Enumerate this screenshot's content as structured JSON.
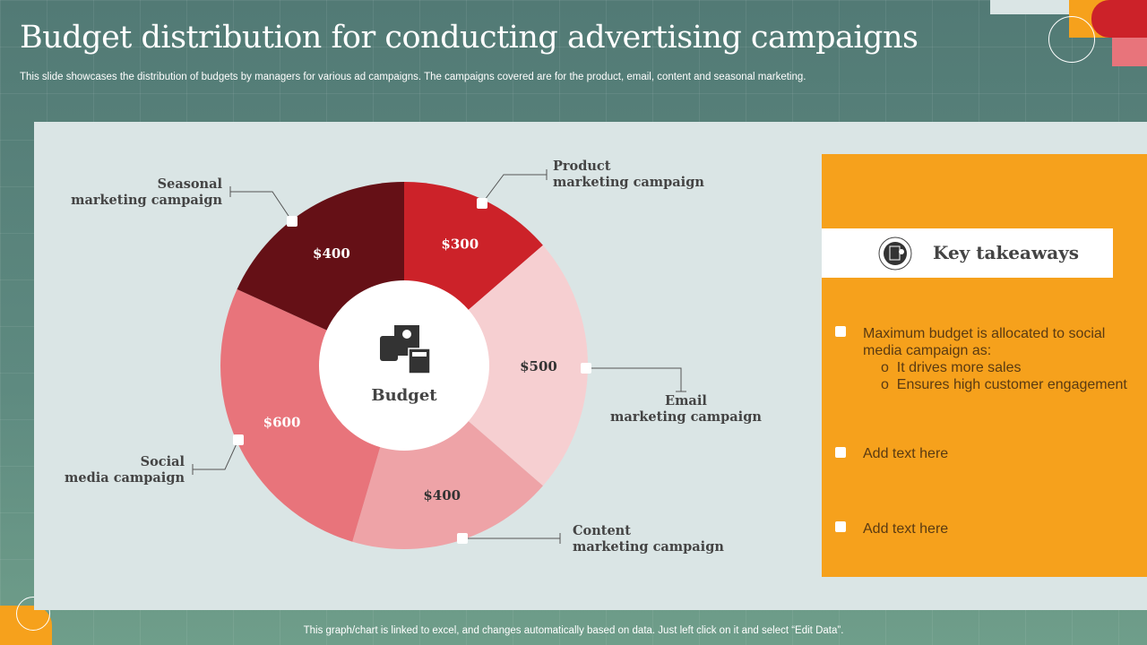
{
  "title": "Budget distribution for conducting advertising campaigns",
  "subtitle": "This slide showcases the distribution of budgets by managers for various ad campaigns. The campaigns covered are for the product, email, content and seasonal marketing.",
  "footer": "This graph/chart is linked to excel,  and changes automatically based on data. Just left click on it and select “Edit Data”.",
  "chart_data": {
    "type": "pie",
    "donut": true,
    "center_label": "Budget",
    "categories": [
      "Product marketing campaign",
      "Email marketing campaign",
      "Content marketing campaign",
      "Social media campaign",
      "Seasonal marketing campaign"
    ],
    "values": [
      300,
      500,
      400,
      600,
      400
    ],
    "data_labels": [
      "$300",
      "$500",
      "$400",
      "$600",
      "$400"
    ],
    "colors": [
      "#cc2229",
      "#f6cfd1",
      "#eea3a7",
      "#e8747b",
      "#651016"
    ]
  },
  "labels": {
    "product": [
      "Product",
      "marketing campaign"
    ],
    "email": [
      "Email",
      "marketing campaign"
    ],
    "content": [
      "Content",
      "marketing campaign"
    ],
    "social": [
      "Social",
      "media campaign"
    ],
    "seasonal": [
      "Seasonal",
      "marketing campaign"
    ]
  },
  "takeaways": {
    "title": "Key takeaways",
    "icon": "document-icon",
    "items": [
      "Maximum budget is allocated to social media campaign as:",
      "Add text here",
      "Add text here"
    ],
    "subitems": [
      "It drives more sales",
      "Ensures high customer engagement"
    ]
  }
}
